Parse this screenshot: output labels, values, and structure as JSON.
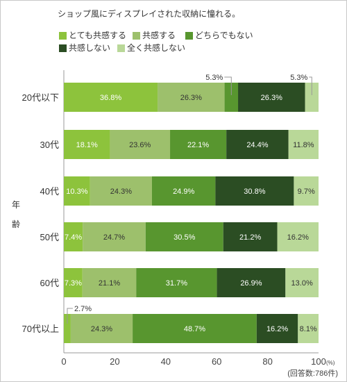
{
  "chart_data": {
    "type": "bar",
    "orientation": "horizontal",
    "stacked": true,
    "title": "ショップ風にディスプレイされた収納に憧れる。",
    "ylabel": "年齢",
    "xlim": [
      0,
      100
    ],
    "x_ticks": [
      "0",
      "20",
      "40",
      "60",
      "80",
      "100"
    ],
    "x_unit": "(%)",
    "note": "(回答数:786件)",
    "legend_placement": "top",
    "categories": [
      "20代以下",
      "30代",
      "40代",
      "50代",
      "60代",
      "70代以上"
    ],
    "series": [
      {
        "name": "とても共感する",
        "color": "#8dc33c",
        "values": [
          36.8,
          18.1,
          10.3,
          7.4,
          7.3,
          2.7
        ]
      },
      {
        "name": "共感する",
        "color": "#9dc06c",
        "values": [
          26.3,
          23.6,
          24.3,
          24.7,
          21.1,
          24.3
        ]
      },
      {
        "name": "どちらでもない",
        "color": "#58962f",
        "values": [
          5.3,
          22.1,
          24.9,
          30.5,
          31.7,
          48.7
        ]
      },
      {
        "name": "共感しない",
        "color": "#2b4d23",
        "values": [
          26.3,
          24.4,
          30.8,
          21.2,
          26.9,
          16.2
        ]
      },
      {
        "name": "全く共感しない",
        "color": "#b9d898",
        "values": [
          5.3,
          11.8,
          9.7,
          16.2,
          13.0,
          8.1
        ]
      }
    ],
    "labels": [
      [
        "36.8%",
        "26.3%",
        "5.3%",
        "26.3%",
        "5.3%"
      ],
      [
        "18.1%",
        "23.6%",
        "22.1%",
        "24.4%",
        "11.8%"
      ],
      [
        "10.3%",
        "24.3%",
        "24.9%",
        "30.8%",
        "9.7%"
      ],
      [
        "7.4%",
        "24.7%",
        "30.5%",
        "21.2%",
        "16.2%"
      ],
      [
        "7.3%",
        "21.1%",
        "31.7%",
        "26.9%",
        "13.0%"
      ],
      [
        "2.7%",
        "24.3%",
        "48.7%",
        "16.2%",
        "8.1%"
      ]
    ],
    "callouts": [
      [
        0,
        2
      ],
      [
        0,
        4
      ],
      [
        5,
        0
      ]
    ]
  }
}
